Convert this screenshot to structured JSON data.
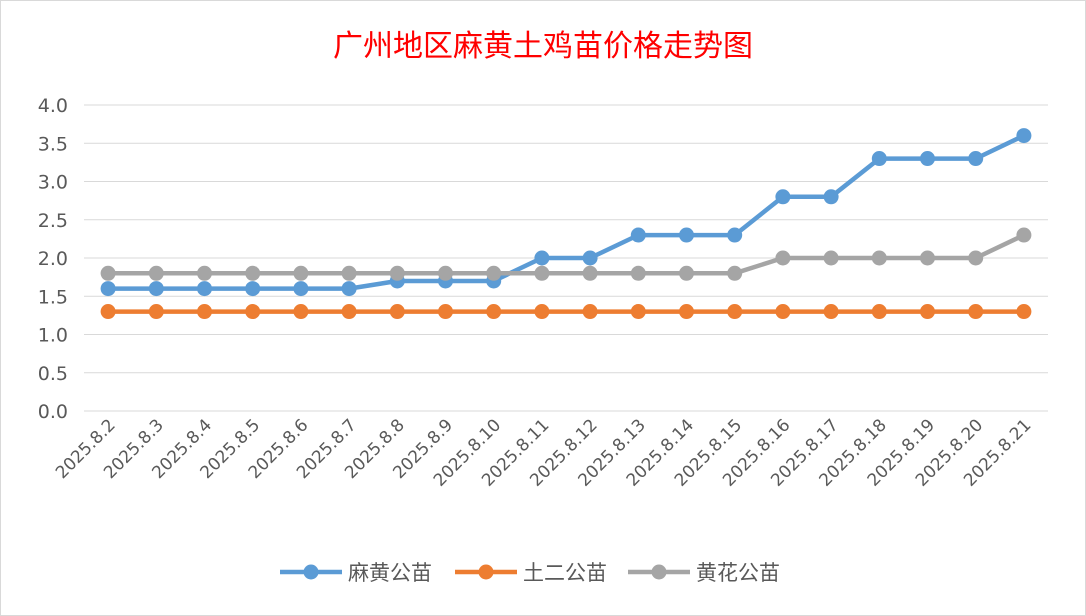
{
  "chart_data": {
    "type": "line",
    "title": "广州地区麻黄土鸡苗价格走势图",
    "categories": [
      "2025.8.2",
      "2025.8.3",
      "2025.8.4",
      "2025.8.5",
      "2025.8.6",
      "2025.8.7",
      "2025.8.8",
      "2025.8.9",
      "2025.8.10",
      "2025.8.11",
      "2025.8.12",
      "2025.8.13",
      "2025.8.14",
      "2025.8.15",
      "2025.8.16",
      "2025.8.17",
      "2025.8.18",
      "2025.8.19",
      "2025.8.20",
      "2025.8.21"
    ],
    "ylim": [
      0,
      4
    ],
    "yticks": [
      "0.0",
      "0.5",
      "1.0",
      "1.5",
      "2.0",
      "2.5",
      "3.0",
      "3.5",
      "4.0"
    ],
    "grid": true,
    "legend_position": "bottom",
    "series": [
      {
        "name": "麻黄公苗",
        "color": "#5b9bd5",
        "values": [
          1.6,
          1.6,
          1.6,
          1.6,
          1.6,
          1.6,
          1.7,
          1.7,
          1.7,
          2.0,
          2.0,
          2.3,
          2.3,
          2.3,
          2.8,
          2.8,
          3.3,
          3.3,
          3.3,
          3.6
        ]
      },
      {
        "name": "土二公苗",
        "color": "#ed7d31",
        "values": [
          1.3,
          1.3,
          1.3,
          1.3,
          1.3,
          1.3,
          1.3,
          1.3,
          1.3,
          1.3,
          1.3,
          1.3,
          1.3,
          1.3,
          1.3,
          1.3,
          1.3,
          1.3,
          1.3,
          1.3
        ]
      },
      {
        "name": "黄花公苗",
        "color": "#a5a5a5",
        "values": [
          1.8,
          1.8,
          1.8,
          1.8,
          1.8,
          1.8,
          1.8,
          1.8,
          1.8,
          1.8,
          1.8,
          1.8,
          1.8,
          1.8,
          2.0,
          2.0,
          2.0,
          2.0,
          2.0,
          2.3
        ]
      }
    ]
  }
}
